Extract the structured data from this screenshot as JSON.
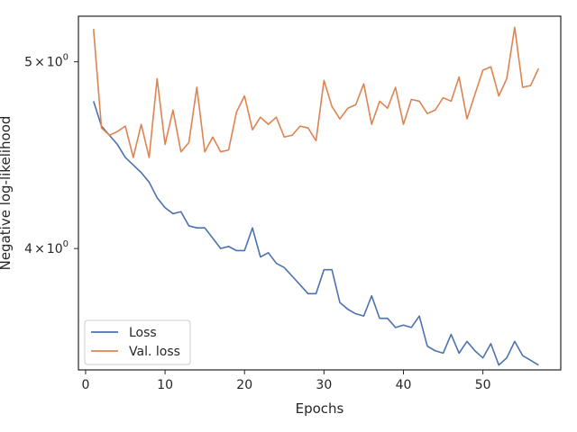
{
  "chart_data": {
    "type": "line",
    "xlabel": "Epochs",
    "ylabel": "Negative log-likelihood",
    "xlim": [
      -0.9,
      59.8
    ],
    "ylim": [
      3.46,
      5.28
    ],
    "yscale": "log",
    "xticks": [
      0,
      10,
      20,
      30,
      40,
      50
    ],
    "xtick_labels": [
      "0",
      "10",
      "20",
      "30",
      "40",
      "50"
    ],
    "yticks": [
      4.0,
      5.0
    ],
    "ytick_labels": [
      {
        "base": "4",
        "mid": "×",
        "ten": "10",
        "exp": "0"
      },
      {
        "base": "5",
        "mid": "×",
        "ten": "10",
        "exp": "0"
      }
    ],
    "legend_position": "lower-left",
    "grid": false,
    "series": [
      {
        "name": "Loss",
        "color": "#4c72b0",
        "x": [
          1,
          2,
          3,
          4,
          5,
          6,
          7,
          8,
          9,
          10,
          11,
          12,
          13,
          14,
          15,
          16,
          17,
          18,
          19,
          20,
          21,
          22,
          23,
          24,
          25,
          26,
          27,
          28,
          29,
          30,
          31,
          32,
          33,
          34,
          35,
          36,
          37,
          38,
          39,
          40,
          41,
          42,
          43,
          44,
          45,
          46,
          47,
          48,
          49,
          50,
          51,
          52,
          53,
          54,
          55,
          56,
          57
        ],
        "values": [
          4.77,
          4.63,
          4.58,
          4.53,
          4.46,
          4.42,
          4.38,
          4.33,
          4.25,
          4.2,
          4.17,
          4.18,
          4.11,
          4.1,
          4.1,
          4.05,
          4.0,
          4.01,
          3.99,
          3.99,
          4.1,
          3.96,
          3.98,
          3.93,
          3.91,
          3.87,
          3.83,
          3.79,
          3.79,
          3.9,
          3.9,
          3.75,
          3.72,
          3.7,
          3.69,
          3.78,
          3.68,
          3.68,
          3.64,
          3.65,
          3.64,
          3.69,
          3.56,
          3.54,
          3.53,
          3.61,
          3.53,
          3.58,
          3.54,
          3.51,
          3.57,
          3.48,
          3.51,
          3.58,
          3.52,
          3.5,
          3.48
        ]
      },
      {
        "name": "Val. loss",
        "color": "#dd8452",
        "x": [
          1,
          2,
          3,
          4,
          5,
          6,
          7,
          8,
          9,
          10,
          11,
          12,
          13,
          14,
          15,
          16,
          17,
          18,
          19,
          20,
          21,
          22,
          23,
          24,
          25,
          26,
          27,
          28,
          29,
          30,
          31,
          32,
          33,
          34,
          35,
          36,
          37,
          38,
          39,
          40,
          41,
          42,
          43,
          44,
          45,
          46,
          47,
          48,
          49,
          50,
          51,
          52,
          53,
          54,
          55,
          56,
          57
        ],
        "values": [
          5.2,
          4.62,
          4.58,
          4.6,
          4.63,
          4.46,
          4.64,
          4.46,
          4.9,
          4.53,
          4.72,
          4.49,
          4.54,
          4.85,
          4.49,
          4.57,
          4.49,
          4.5,
          4.71,
          4.8,
          4.61,
          4.68,
          4.64,
          4.68,
          4.57,
          4.58,
          4.63,
          4.62,
          4.55,
          4.89,
          4.74,
          4.67,
          4.73,
          4.75,
          4.87,
          4.64,
          4.77,
          4.73,
          4.85,
          4.64,
          4.78,
          4.77,
          4.7,
          4.72,
          4.79,
          4.77,
          4.91,
          4.67,
          4.81,
          4.95,
          4.97,
          4.8,
          4.9,
          5.21,
          4.85,
          4.86,
          4.96
        ]
      }
    ]
  }
}
